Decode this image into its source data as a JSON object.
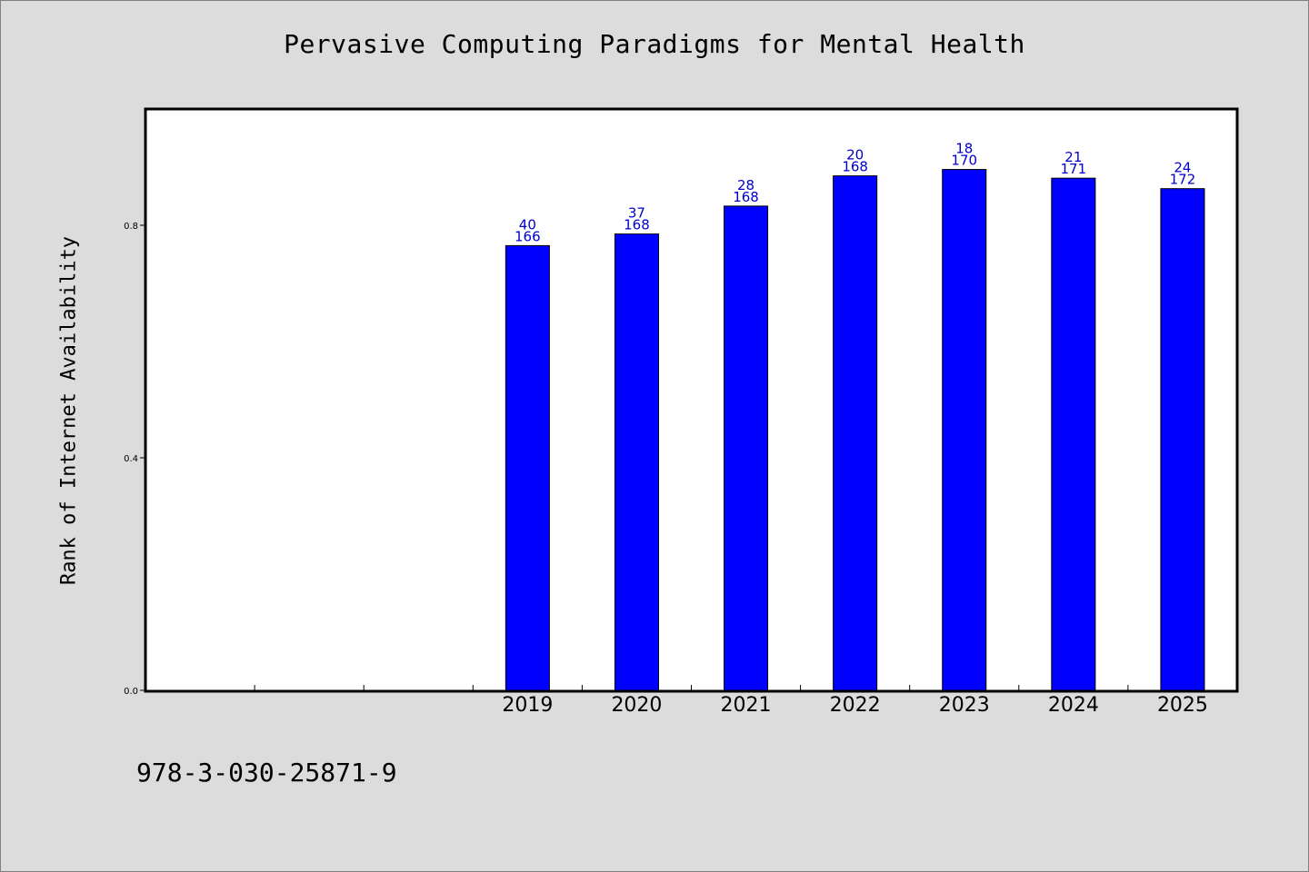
{
  "chart_data": {
    "type": "bar",
    "title": "Pervasive Computing Paradigms for Mental Health",
    "xlabel": "",
    "ylabel": "Rank of Internet Availability",
    "ylim": [
      0,
      1.0
    ],
    "yticks": [
      0.0,
      0.4,
      0.8
    ],
    "ytick_labels": [
      "0.0",
      "0.4",
      "0.8"
    ],
    "categories": [
      "",
      "",
      "",
      "2019",
      "2020",
      "2021",
      "2022",
      "2023",
      "2024",
      "2025"
    ],
    "series": [
      {
        "values": [
          null,
          null,
          null,
          0.765,
          0.785,
          0.833,
          0.885,
          0.896,
          0.881,
          0.863
        ],
        "color": "#0000ff",
        "labels_top": [
          "",
          "",
          "",
          "40",
          "37",
          "28",
          "20",
          "18",
          "21",
          "24"
        ],
        "labels_bottom": [
          "",
          "",
          "",
          "166",
          "168",
          "168",
          "168",
          "170",
          "171",
          "172"
        ]
      }
    ],
    "grid": false,
    "legend": "none"
  },
  "footer": {
    "isbn": "978-3-030-25871-9"
  },
  "colors": {
    "background": "#dcdcdc",
    "plot_background": "#ffffff",
    "bar": "#0000ff",
    "data_label": "#0000cc"
  }
}
